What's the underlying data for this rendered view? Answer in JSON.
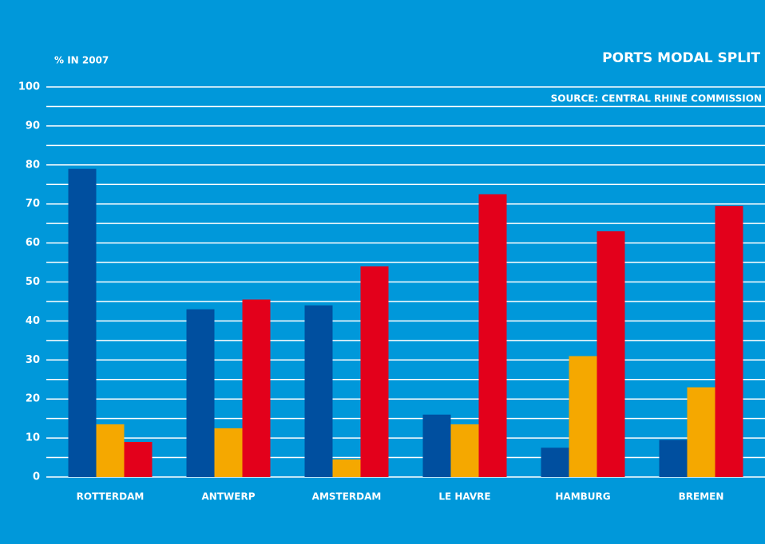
{
  "chart_data": {
    "type": "bar",
    "title": "PORTS MODAL SPLIT",
    "subtitle": "SOURCE: CENTRAL RHINE COMMISSION",
    "y_label": "% IN 2007",
    "categories": [
      "ROTTERDAM",
      "ANTWERP",
      "AMSTERDAM",
      "LE HAVRE",
      "HAMBURG",
      "BREMEN"
    ],
    "series": [
      {
        "color": "#004f9f",
        "values": [
          79,
          43,
          44,
          16,
          7.5,
          9.5
        ]
      },
      {
        "color": "#f5a800",
        "values": [
          13.5,
          12.5,
          4.5,
          13.5,
          31,
          23
        ]
      },
      {
        "color": "#e3001b",
        "values": [
          9,
          45.5,
          54,
          72.5,
          63,
          69.5
        ]
      }
    ],
    "ylim": [
      0,
      100
    ],
    "yticks": [
      0,
      10,
      20,
      30,
      40,
      50,
      60,
      70,
      80,
      90,
      100
    ],
    "minor_yticks": [
      5,
      15,
      25,
      35,
      45,
      55,
      65,
      75,
      85,
      95
    ],
    "grid": true
  }
}
